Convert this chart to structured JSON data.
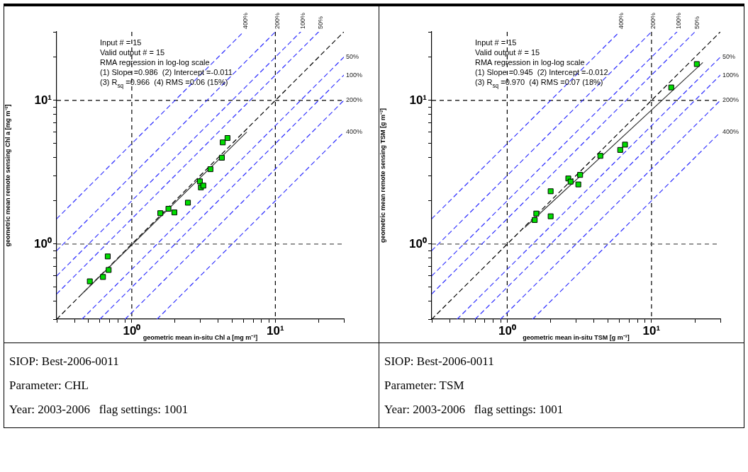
{
  "chart_data": [
    {
      "type": "scatter",
      "xlabel": "geometric mean in-situ Chl a [mg m⁻³]",
      "ylabel": "geometric mean remote sensing Chl a [mg m⁻³]",
      "log": "xy",
      "xlim": [
        0.3,
        30
      ],
      "ylim": [
        0.3,
        30
      ],
      "xticks": [
        {
          "value": 0.3,
          "label": null
        },
        {
          "value": 0.4,
          "label": null
        },
        {
          "value": 0.5,
          "label": null
        },
        {
          "value": 0.6,
          "label": null
        },
        {
          "value": 0.7,
          "label": null
        },
        {
          "value": 0.8,
          "label": null
        },
        {
          "value": 0.9,
          "label": null
        },
        {
          "value": 1,
          "label": "10⁰"
        },
        {
          "value": 2,
          "label": null
        },
        {
          "value": 3,
          "label": null
        },
        {
          "value": 4,
          "label": null
        },
        {
          "value": 5,
          "label": null
        },
        {
          "value": 6,
          "label": null
        },
        {
          "value": 7,
          "label": null
        },
        {
          "value": 8,
          "label": null
        },
        {
          "value": 9,
          "label": null
        },
        {
          "value": 10,
          "label": "10¹"
        },
        {
          "value": 20,
          "label": null
        },
        {
          "value": 30,
          "label": null
        }
      ],
      "yticks": [
        {
          "value": 0.3,
          "label": null
        },
        {
          "value": 0.4,
          "label": null
        },
        {
          "value": 0.5,
          "label": null
        },
        {
          "value": 0.6,
          "label": null
        },
        {
          "value": 0.7,
          "label": null
        },
        {
          "value": 0.8,
          "label": null
        },
        {
          "value": 0.9,
          "label": null
        },
        {
          "value": 1,
          "label": "10⁰"
        },
        {
          "value": 2,
          "label": null
        },
        {
          "value": 3,
          "label": null
        },
        {
          "value": 4,
          "label": null
        },
        {
          "value": 5,
          "label": null
        },
        {
          "value": 6,
          "label": null
        },
        {
          "value": 7,
          "label": null
        },
        {
          "value": 8,
          "label": null
        },
        {
          "value": 9,
          "label": null
        },
        {
          "value": 10,
          "label": "10¹"
        },
        {
          "value": 20,
          "label": null
        },
        {
          "value": 30,
          "label": null
        }
      ],
      "grid": false,
      "legend": false,
      "ref_lines": [
        {
          "axis": "x",
          "value": 1,
          "line_style": "dashed",
          "color": "#000000"
        },
        {
          "axis": "x",
          "value": 10,
          "line_style": "dashed",
          "color": "#000000"
        },
        {
          "axis": "y",
          "value": 1,
          "line_style": "dashed",
          "color": "#555555"
        },
        {
          "axis": "y",
          "value": 10,
          "line_style": "dashed",
          "color": "#000000"
        }
      ],
      "annotations": [
        "Input # = 15",
        "Valid output # = 15",
        "RMA regression in log-log scale",
        "(1) Slope =0.986  (2) Intercept =-0.011",
        "(3) R$_{sq}$ =0.966  (4) RMS =0.06 (15%)"
      ],
      "series": [
        {
          "type": "line",
          "name": "400%",
          "color": "#3333ff",
          "line_style": "dashed",
          "marker": "none",
          "x": [
            0.3,
            6
          ],
          "values": [
            1.5,
            30
          ]
        },
        {
          "type": "line",
          "name": "200%",
          "color": "#3333ff",
          "line_style": "dashed",
          "marker": "none",
          "x": [
            0.3,
            10
          ],
          "values": [
            0.9,
            30
          ]
        },
        {
          "type": "line",
          "name": "100%",
          "color": "#3333ff",
          "line_style": "dashed",
          "marker": "none",
          "x": [
            0.3,
            15
          ],
          "values": [
            0.6,
            30
          ]
        },
        {
          "type": "line",
          "name": "50%",
          "color": "#3333ff",
          "line_style": "dashed",
          "marker": "none",
          "x": [
            0.3,
            20
          ],
          "values": [
            0.45,
            30
          ]
        },
        {
          "type": "line",
          "color": "#000000",
          "line_style": "dashed",
          "marker": "none",
          "x": [
            0.3,
            30
          ],
          "values": [
            0.3,
            30
          ]
        },
        {
          "type": "line",
          "name": "50%",
          "color": "#3333ff",
          "line_style": "dashed",
          "marker": "none",
          "x": [
            0.45,
            30
          ],
          "values": [
            0.3,
            20
          ]
        },
        {
          "type": "line",
          "name": "100%",
          "color": "#3333ff",
          "line_style": "dashed",
          "marker": "none",
          "x": [
            0.6,
            30
          ],
          "values": [
            0.3,
            15
          ]
        },
        {
          "type": "line",
          "name": "200%",
          "color": "#3333ff",
          "line_style": "dashed",
          "marker": "none",
          "x": [
            0.9,
            30
          ],
          "values": [
            0.3,
            10
          ]
        },
        {
          "type": "line",
          "name": "400%",
          "color": "#3333ff",
          "line_style": "dashed",
          "marker": "none",
          "x": [
            1.5,
            30
          ],
          "values": [
            0.3,
            6
          ]
        },
        {
          "type": "line",
          "color": "#333333",
          "line_style": "solid",
          "marker": "none",
          "x": [
            0.45,
            6.3
          ],
          "values": [
            0.45,
            6.0
          ]
        },
        {
          "type": "scatter",
          "color": "#00dd00",
          "marker": "square",
          "x": [
            0.51,
            0.63,
            0.68,
            0.69,
            1.58,
            1.8,
            1.98,
            2.46,
            2.98,
            3.03,
            3.15,
            3.53,
            4.24,
            4.3,
            4.64
          ],
          "values": [
            0.55,
            0.59,
            0.82,
            0.66,
            1.64,
            1.76,
            1.66,
            1.94,
            2.73,
            2.48,
            2.55,
            3.32,
            3.99,
            5.1,
            5.47
          ]
        }
      ]
    },
    {
      "type": "scatter",
      "xlabel": "geometric mean in-situ TSM [g m⁻³]",
      "ylabel": "geometric mean remote sensing TSM [g m⁻³]",
      "log": "xy",
      "xlim": [
        0.3,
        30
      ],
      "ylim": [
        0.3,
        30
      ],
      "xticks": [
        {
          "value": 0.3,
          "label": null
        },
        {
          "value": 0.4,
          "label": null
        },
        {
          "value": 0.5,
          "label": null
        },
        {
          "value": 0.6,
          "label": null
        },
        {
          "value": 0.7,
          "label": null
        },
        {
          "value": 0.8,
          "label": null
        },
        {
          "value": 0.9,
          "label": null
        },
        {
          "value": 1,
          "label": "10⁰"
        },
        {
          "value": 2,
          "label": null
        },
        {
          "value": 3,
          "label": null
        },
        {
          "value": 4,
          "label": null
        },
        {
          "value": 5,
          "label": null
        },
        {
          "value": 6,
          "label": null
        },
        {
          "value": 7,
          "label": null
        },
        {
          "value": 8,
          "label": null
        },
        {
          "value": 9,
          "label": null
        },
        {
          "value": 10,
          "label": "10¹"
        },
        {
          "value": 20,
          "label": null
        },
        {
          "value": 30,
          "label": null
        }
      ],
      "yticks": [
        {
          "value": 0.3,
          "label": null
        },
        {
          "value": 0.4,
          "label": null
        },
        {
          "value": 0.5,
          "label": null
        },
        {
          "value": 0.6,
          "label": null
        },
        {
          "value": 0.7,
          "label": null
        },
        {
          "value": 0.8,
          "label": null
        },
        {
          "value": 0.9,
          "label": null
        },
        {
          "value": 1,
          "label": "10⁰"
        },
        {
          "value": 2,
          "label": null
        },
        {
          "value": 3,
          "label": null
        },
        {
          "value": 4,
          "label": null
        },
        {
          "value": 5,
          "label": null
        },
        {
          "value": 6,
          "label": null
        },
        {
          "value": 7,
          "label": null
        },
        {
          "value": 8,
          "label": null
        },
        {
          "value": 9,
          "label": null
        },
        {
          "value": 10,
          "label": "10¹"
        },
        {
          "value": 20,
          "label": null
        },
        {
          "value": 30,
          "label": null
        }
      ],
      "grid": false,
      "legend": false,
      "ref_lines": [
        {
          "axis": "x",
          "value": 1,
          "line_style": "dashed",
          "color": "#000000"
        },
        {
          "axis": "x",
          "value": 10,
          "line_style": "dashed",
          "color": "#000000"
        },
        {
          "axis": "y",
          "value": 1,
          "line_style": "dashed",
          "color": "#555555"
        },
        {
          "axis": "y",
          "value": 10,
          "line_style": "dashed",
          "color": "#000000"
        }
      ],
      "annotations": [
        "Input # = 15",
        "Valid output # = 15",
        "RMA regression in log-log scale",
        "(1) Slope =0.945  (2) Intercept =-0.012",
        "(3) R$_{sq}$ =0.970  (4) RMS =0.07 (18%)"
      ],
      "series": [
        {
          "type": "line",
          "name": "400%",
          "color": "#3333ff",
          "line_style": "dashed",
          "marker": "none",
          "x": [
            0.3,
            6
          ],
          "values": [
            1.5,
            30
          ]
        },
        {
          "type": "line",
          "name": "200%",
          "color": "#3333ff",
          "line_style": "dashed",
          "marker": "none",
          "x": [
            0.3,
            10
          ],
          "values": [
            0.9,
            30
          ]
        },
        {
          "type": "line",
          "name": "100%",
          "color": "#3333ff",
          "line_style": "dashed",
          "marker": "none",
          "x": [
            0.3,
            15
          ],
          "values": [
            0.6,
            30
          ]
        },
        {
          "type": "line",
          "name": "50%",
          "color": "#3333ff",
          "line_style": "dashed",
          "marker": "none",
          "x": [
            0.3,
            20
          ],
          "values": [
            0.45,
            30
          ]
        },
        {
          "type": "line",
          "color": "#000000",
          "line_style": "dashed",
          "marker": "none",
          "x": [
            0.3,
            30
          ],
          "values": [
            0.3,
            30
          ]
        },
        {
          "type": "line",
          "name": "50%",
          "color": "#3333ff",
          "line_style": "dashed",
          "marker": "none",
          "x": [
            0.45,
            30
          ],
          "values": [
            0.3,
            20
          ]
        },
        {
          "type": "line",
          "name": "100%",
          "color": "#3333ff",
          "line_style": "dashed",
          "marker": "none",
          "x": [
            0.6,
            30
          ],
          "values": [
            0.3,
            15
          ]
        },
        {
          "type": "line",
          "name": "200%",
          "color": "#3333ff",
          "line_style": "dashed",
          "marker": "none",
          "x": [
            0.9,
            30
          ],
          "values": [
            0.3,
            10
          ]
        },
        {
          "type": "line",
          "name": "400%",
          "color": "#3333ff",
          "line_style": "dashed",
          "marker": "none",
          "x": [
            1.5,
            30
          ],
          "values": [
            0.3,
            6
          ]
        },
        {
          "type": "line",
          "color": "#333333",
          "line_style": "solid",
          "marker": "none",
          "x": [
            1.33,
            22.6
          ],
          "values": [
            1.31,
            18.3
          ]
        },
        {
          "type": "scatter",
          "color": "#00dd00",
          "marker": "square",
          "x": [
            1.55,
            1.59,
            2.0,
            2.0,
            2.65,
            2.75,
            3.08,
            3.11,
            3.2,
            4.42,
            6.07,
            6.55,
            13.7,
            20.6
          ],
          "values": [
            1.47,
            1.63,
            1.56,
            2.33,
            2.86,
            2.72,
            null,
            2.6,
            3.03,
            4.11,
            4.52,
            4.92,
            12.3,
            17.9
          ]
        }
      ]
    },
    {
      "type": "other",
      "annotations": [
        "SIOP: Best-2006-0011",
        "Parameter: CHL",
        "Year: 2003-2006   flag settings: 1001"
      ]
    },
    {
      "type": "other",
      "annotations": [
        "SIOP: Best-2006-0011",
        "Parameter: TSM",
        "Year: 2003-2006   flag settings: 1001"
      ]
    }
  ]
}
